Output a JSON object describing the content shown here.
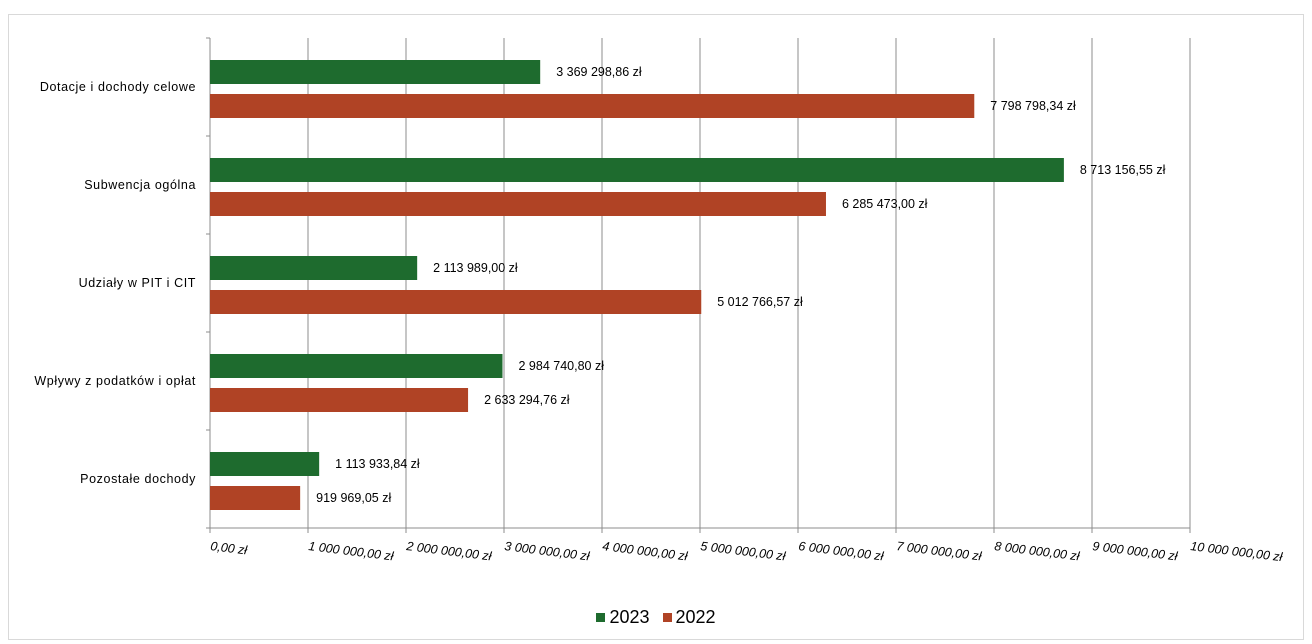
{
  "chart_data": {
    "type": "bar",
    "orientation": "horizontal",
    "categories": [
      "Dotacje i dochody celowe",
      "Subwencja ogólna",
      "Udziały w PIT i CIT",
      "Wpływy z podatków i opłat",
      "Pozostałe dochody"
    ],
    "series": [
      {
        "name": "2023",
        "color": "#1e6b2e",
        "values": [
          3369298.86,
          8713156.55,
          2113989.0,
          2984740.8,
          1113933.84
        ],
        "labels": [
          "3 369 298,86  zł",
          "8 713 156,55  zł",
          "2 113 989,00  zł",
          "2 984 740,80  zł",
          "1 113 933,84  zł"
        ]
      },
      {
        "name": "2022",
        "color": "#b04325",
        "values": [
          7798798.34,
          6285473.0,
          5012766.57,
          2633294.76,
          919969.05
        ],
        "labels": [
          "7 798 798,34  zł",
          "6 285 473,00  zł",
          "5 012 766,57  zł",
          "2 633 294,76  zł",
          "919 969,05  zł"
        ]
      }
    ],
    "xlim": [
      0,
      10000000
    ],
    "xticks": [
      0,
      1000000,
      2000000,
      3000000,
      4000000,
      5000000,
      6000000,
      7000000,
      8000000,
      9000000,
      10000000
    ],
    "xtick_labels": [
      "0,00 zł",
      "1 000 000,00 zł",
      "2 000 000,00 zł",
      "3 000 000,00 zł",
      "4 000 000,00 zł",
      "5 000 000,00 zł",
      "6 000 000,00 zł",
      "7 000 000,00 zł",
      "8 000 000,00 zł",
      "9 000 000,00 zł",
      "10 000 000,00 zł"
    ],
    "grid": true,
    "legend_position": "bottom"
  },
  "legend": [
    {
      "label": "2023",
      "color": "#1e6b2e"
    },
    {
      "label": "2022",
      "color": "#b04325"
    }
  ]
}
